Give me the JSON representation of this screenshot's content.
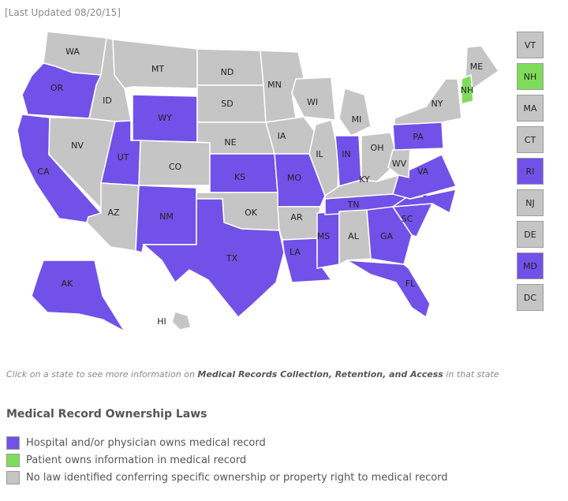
{
  "last_updated": "[Last Updated 08/20/15]",
  "colors": {
    "hospital_owns": "#7151e8",
    "patient_owns": "#7fdc5a",
    "no_law": "#c5c5c5",
    "border": "#ffffff"
  },
  "legend": {
    "title": "Medical Record Ownership Laws",
    "items": [
      {
        "key": "hospital_owns",
        "label": "Hospital and/or physician owns medical record"
      },
      {
        "key": "patient_owns",
        "label": "Patient owns information in medical record"
      },
      {
        "key": "no_law",
        "label": "No law identified conferring specific ownership or property right to medical record"
      }
    ]
  },
  "note": {
    "prefix": "Click on a state to see more information on ",
    "bold": "Medical Records Collection, Retention, and Access",
    "suffix": " in that state"
  },
  "states": {
    "WA": "no_law",
    "OR": "hospital_owns",
    "CA": "hospital_owns",
    "NV": "no_law",
    "ID": "no_law",
    "MT": "no_law",
    "WY": "hospital_owns",
    "UT": "hospital_owns",
    "AZ": "no_law",
    "CO": "no_law",
    "NM": "hospital_owns",
    "ND": "no_law",
    "SD": "no_law",
    "NE": "no_law",
    "KS": "hospital_owns",
    "OK": "no_law",
    "TX": "hospital_owns",
    "MN": "no_law",
    "IA": "no_law",
    "MO": "hospital_owns",
    "AR": "no_law",
    "LA": "hospital_owns",
    "WI": "no_law",
    "IL": "no_law",
    "MS": "hospital_owns",
    "MI": "no_law",
    "IN": "hospital_owns",
    "OH": "no_law",
    "KY": "no_law",
    "TN": "hospital_owns",
    "AL": "no_law",
    "GA": "hospital_owns",
    "FL": "hospital_owns",
    "SC": "hospital_owns",
    "NC": "hospital_owns",
    "VA": "hospital_owns",
    "WV": "no_law",
    "PA": "hospital_owns",
    "NY": "no_law",
    "ME": "no_law",
    "NH": "patient_owns",
    "AK": "hospital_owns",
    "HI": "no_law"
  },
  "small_states": [
    {
      "code": "VT",
      "key": "no_law"
    },
    {
      "code": "NH",
      "key": "patient_owns"
    },
    {
      "code": "MA",
      "key": "no_law"
    },
    {
      "code": "CT",
      "key": "no_law"
    },
    {
      "code": "RI",
      "key": "hospital_owns"
    },
    {
      "code": "NJ",
      "key": "no_law"
    },
    {
      "code": "DE",
      "key": "no_law"
    },
    {
      "code": "MD",
      "key": "hospital_owns"
    },
    {
      "code": "DC",
      "key": "no_law"
    }
  ]
}
